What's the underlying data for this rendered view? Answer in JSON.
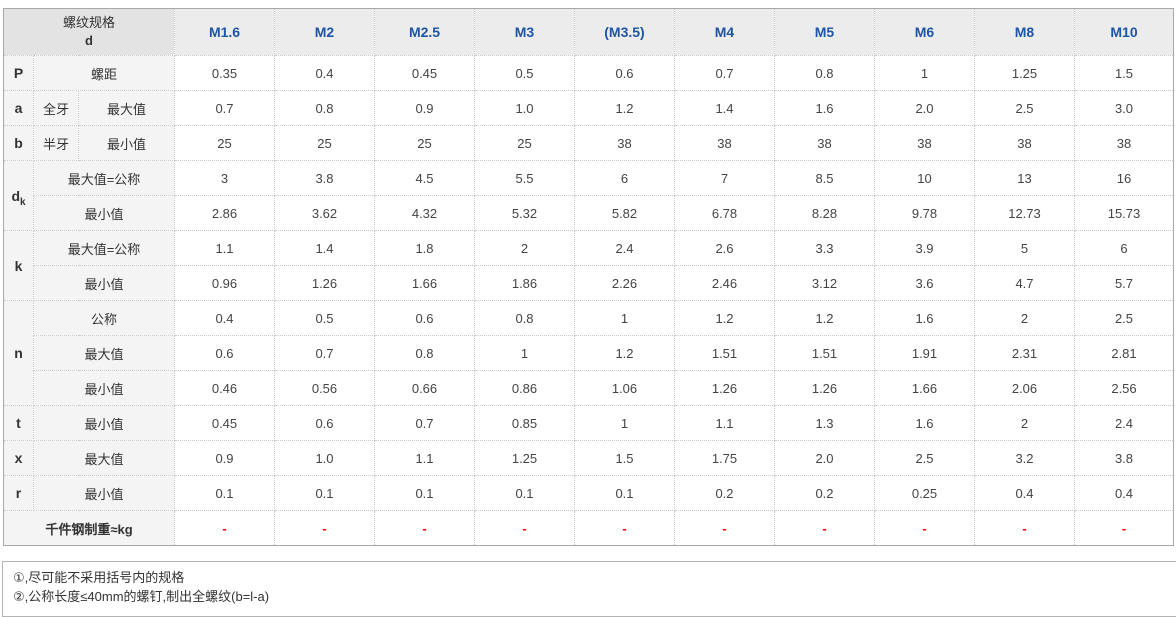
{
  "table": {
    "corner_header": {
      "line1": "螺纹规格",
      "line2": "d"
    },
    "columns": [
      "M1.6",
      "M2",
      "M2.5",
      "M3",
      "(M3.5)",
      "M4",
      "M5",
      "M6",
      "M8",
      "M10"
    ],
    "row_groups": [
      {
        "letter": "P",
        "rows": [
          {
            "desc": "螺距",
            "values": [
              "0.35",
              "0.4",
              "0.45",
              "0.5",
              "0.6",
              "0.7",
              "0.8",
              "1",
              "1.25",
              "1.5"
            ]
          }
        ]
      },
      {
        "letter": "a",
        "rows": [
          {
            "mid": "全牙",
            "desc": "最大值",
            "values": [
              "0.7",
              "0.8",
              "0.9",
              "1.0",
              "1.2",
              "1.4",
              "1.6",
              "2.0",
              "2.5",
              "3.0"
            ]
          }
        ]
      },
      {
        "letter": "b",
        "rows": [
          {
            "mid": "半牙",
            "desc": "最小值",
            "values": [
              "25",
              "25",
              "25",
              "25",
              "38",
              "38",
              "38",
              "38",
              "38",
              "38"
            ]
          }
        ]
      },
      {
        "letter": "d",
        "letter_sub": "k",
        "rows": [
          {
            "desc": "最大值=公称",
            "values": [
              "3",
              "3.8",
              "4.5",
              "5.5",
              "6",
              "7",
              "8.5",
              "10",
              "13",
              "16"
            ]
          },
          {
            "desc": "最小值",
            "values": [
              "2.86",
              "3.62",
              "4.32",
              "5.32",
              "5.82",
              "6.78",
              "8.28",
              "9.78",
              "12.73",
              "15.73"
            ]
          }
        ]
      },
      {
        "letter": "k",
        "rows": [
          {
            "desc": "最大值=公称",
            "values": [
              "1.1",
              "1.4",
              "1.8",
              "2",
              "2.4",
              "2.6",
              "3.3",
              "3.9",
              "5",
              "6"
            ]
          },
          {
            "desc": "最小值",
            "values": [
              "0.96",
              "1.26",
              "1.66",
              "1.86",
              "2.26",
              "2.46",
              "3.12",
              "3.6",
              "4.7",
              "5.7"
            ]
          }
        ]
      },
      {
        "letter": "n",
        "rows": [
          {
            "desc": "公称",
            "values": [
              "0.4",
              "0.5",
              "0.6",
              "0.8",
              "1",
              "1.2",
              "1.2",
              "1.6",
              "2",
              "2.5"
            ]
          },
          {
            "desc": "最大值",
            "values": [
              "0.6",
              "0.7",
              "0.8",
              "1",
              "1.2",
              "1.51",
              "1.51",
              "1.91",
              "2.31",
              "2.81"
            ]
          },
          {
            "desc": "最小值",
            "values": [
              "0.46",
              "0.56",
              "0.66",
              "0.86",
              "1.06",
              "1.26",
              "1.26",
              "1.66",
              "2.06",
              "2.56"
            ]
          }
        ]
      },
      {
        "letter": "t",
        "rows": [
          {
            "desc": "最小值",
            "values": [
              "0.45",
              "0.6",
              "0.7",
              "0.85",
              "1",
              "1.1",
              "1.3",
              "1.6",
              "2",
              "2.4"
            ]
          }
        ]
      },
      {
        "letter": "x",
        "rows": [
          {
            "desc": "最大值",
            "values": [
              "0.9",
              "1.0",
              "1.1",
              "1.25",
              "1.5",
              "1.75",
              "2.0",
              "2.5",
              "3.2",
              "3.8"
            ]
          }
        ]
      },
      {
        "letter": "r",
        "rows": [
          {
            "desc": "最小值",
            "values": [
              "0.1",
              "0.1",
              "0.1",
              "0.1",
              "0.1",
              "0.2",
              "0.2",
              "0.25",
              "0.4",
              "0.4"
            ]
          }
        ]
      },
      {
        "letter": "千件钢制重≈kg",
        "weight": true,
        "rows": [
          {
            "red": true,
            "values": [
              "-",
              "-",
              "-",
              "-",
              "-",
              "-",
              "-",
              "-",
              "-",
              "-"
            ]
          }
        ]
      }
    ],
    "accent_color": "#1d55a5",
    "dash_color": "#fe0000"
  },
  "notes": [
    "①,尽可能不采用括号内的规格",
    "②,公称长度≤40mm的螺钉,制出全螺纹(b=l-a)"
  ]
}
